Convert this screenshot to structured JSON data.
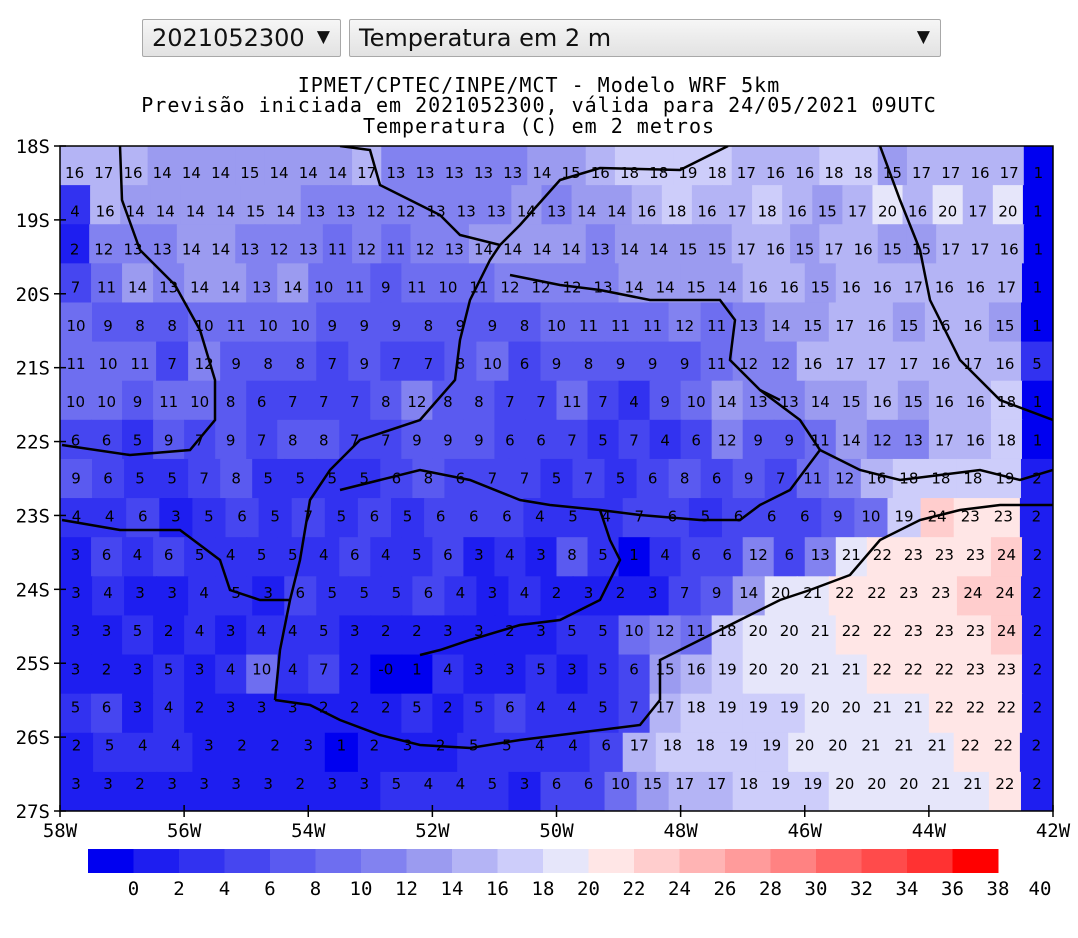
{
  "controls": {
    "date_select": "2021052300",
    "variable_select": "Temperatura em 2 m"
  },
  "title": {
    "line1": "IPMET/CPTEC/INPE/MCT - Modelo WRF 5km",
    "line2": "Previsão iniciada em 2021052300, válida para 24/05/2021 09UTC",
    "line3": "Temperatura (C) em 2 metros"
  },
  "axes": {
    "y_ticks": [
      "18S",
      "19S",
      "20S",
      "21S",
      "22S",
      "23S",
      "24S",
      "25S",
      "26S",
      "27S"
    ],
    "x_ticks": [
      "58W",
      "56W",
      "54W",
      "52W",
      "50W",
      "48W",
      "46W",
      "44W",
      "42W"
    ]
  },
  "colorbar": {
    "labels": [
      "0",
      "2",
      "4",
      "6",
      "8",
      "10",
      "12",
      "14",
      "16",
      "18",
      "20",
      "22",
      "24",
      "26",
      "28",
      "30",
      "32",
      "34",
      "36",
      "38",
      "40"
    ],
    "colors": [
      "#0000f0",
      "#1e1ef0",
      "#3232f0",
      "#4646f0",
      "#5a5af0",
      "#6e6ef0",
      "#8282f0",
      "#9b9bf0",
      "#b4b4f5",
      "#cdcdfa",
      "#e6e6fa",
      "#ffe6e6",
      "#ffcdcd",
      "#ffb4b4",
      "#ff9b9b",
      "#ff8282",
      "#ff6464",
      "#ff4b4b",
      "#ff3232",
      "#ff0000"
    ]
  },
  "chart_data": {
    "type": "heatmap",
    "title": "Temperatura (C) em 2 metros",
    "x_range": [
      "58W",
      "42W"
    ],
    "y_range": [
      "18S",
      "27S"
    ],
    "rows": [
      "16 17 16 14 14 14 15 14 14 14 17 13 13 13 13 13 14 15 16 18 18 19 18 17 16 16 18 18 15 17 17 16 17 1",
      "4 16 14 14 14 14 15 14 13 13 12 12 13 13 13 14 13 14 14 16 18 16 17 18 16 15 17 20 16 20 17 20 1",
      "2 12 13 13 14 14 13 12 13 11 12 11 12 13 14 14 14 14 13 14 14 15 15 17 16 15 17 16 15 15 17 17 16 1",
      "7 11 14 13 14 14 13 14 10 11 9 11 10 11 12 12 12 13 14 14 15 14 16 16 15 16 16 17 16 16 17 1",
      "10 9 8 8 10 11 10 10 9 9 9 8 9 9 8 10 11 11 11 12 11 13 14 15 17 16 15 16 16 15 1",
      "11 10 11 7 12 9 8 8 7 9 7 7 8 10 6 9 8 9 9 9 11 12 12 16 17 17 17 16 17 16 5",
      "10 10 9 11 10 8 6 7 7 7 8 12 8 8 7 7 11 7 4 9 10 14 13 13 14 15 16 15 16 16 18 1",
      "6 6 5 9 7 9 7 8 8 7 7 9 9 9 6 6 7 5 7 4 6 12 9 9 11 14 12 13 17 16 18 1",
      "9 6 5 5 7 8 5 5 5 5 6 8 6 7 7 5 7 5 6 8 6 9 7 11 12 16 18 18 18 19 2",
      "4 4 6 3 5 6 5 7 5 6 5 6 6 6 4 5 4 7 6 5 6 6 6 9 10 19 24 23 23 2",
      "3 6 4 6 5 4 5 5 4 6 4 5 6 3 4 3 8 5 1 4 6 6 12 6 13 21 22 23 23 23 24 2",
      "3 4 3 3 4 5 3 6 5 5 5 6 4 3 4 2 3 2 3 7 9 14 20 21 22 22 23 23 24 24 2",
      "3 3 5 2 4 3 4 4 5 3 2 2 3 3 2 3 5 5 10 12 11 18 20 20 21 22 22 23 23 23 24 2",
      "3 2 3 5 3 4 10 4 7 2 -0 1 4 3 3 5 3 5 6 15 16 19 20 20 21 21 22 22 22 23 23 2",
      "5 6 3 4 2 3 3 3 2 2 2 5 2 5 6 4 4 5 7 17 18 19 19 19 20 20 21 21 22 22 22 2",
      "2 5 4 4 3 2 2 3 1 2 3 2 5 5 4 4 6 17 18 18 19 19 20 20 21 21 21 22 22 2",
      "3 3 2 3 3 3 3 2 3 3 5 4 4 5 3 6 6 10 15 17 17 18 19 19 20 20 20 21 21 22 2"
    ],
    "colorbar_labels": [
      "0",
      "2",
      "4",
      "6",
      "8",
      "10",
      "12",
      "14",
      "16",
      "18",
      "20",
      "22",
      "24",
      "26",
      "28",
      "30",
      "32",
      "34",
      "36",
      "38",
      "40"
    ]
  }
}
